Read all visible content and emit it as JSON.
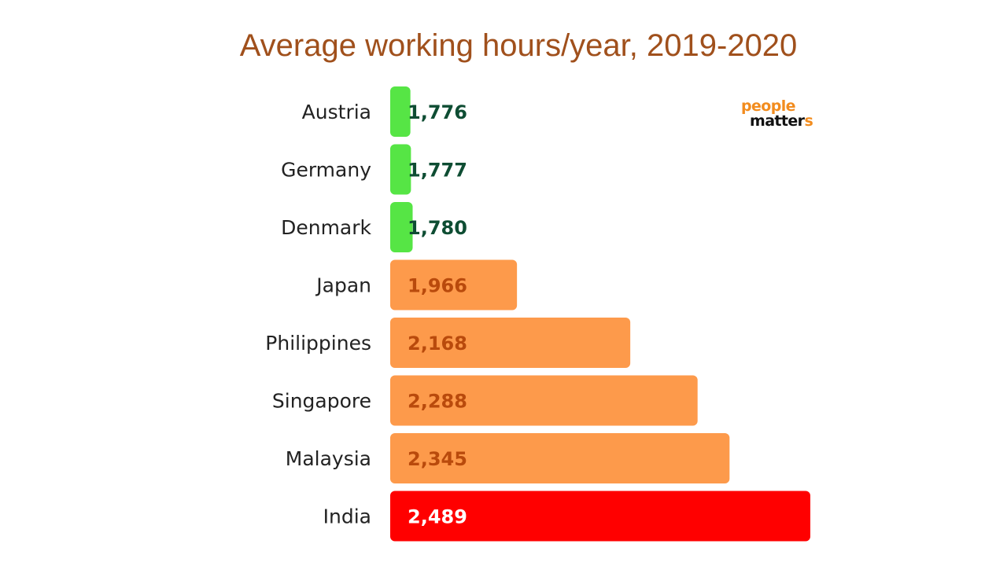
{
  "chart_data": {
    "type": "bar",
    "orientation": "horizontal",
    "title": "Average working hours/year, 2019-2020",
    "categories": [
      "Austria",
      "Germany",
      "Denmark",
      "Japan",
      "Philippines",
      "Singapore",
      "Malaysia",
      "India"
    ],
    "values": [
      1776,
      1777,
      1780,
      1966,
      2168,
      2288,
      2345,
      2489
    ],
    "value_labels": [
      "1,776",
      "1,777",
      "1,780",
      "1,966",
      "2,168",
      "2,288",
      "2,345",
      "2,489"
    ],
    "xlim": [
      1740,
      2489
    ],
    "bar_colors": [
      "#56e545",
      "#56e545",
      "#56e545",
      "#fd9a4b",
      "#fd9a4b",
      "#fd9a4b",
      "#fd9a4b",
      "#ff0000"
    ],
    "label_colors": [
      "#0e4d33",
      "#0e4d33",
      "#0e4d33",
      "#b94a0c",
      "#b94a0c",
      "#b94a0c",
      "#b94a0c",
      "#ffffff"
    ],
    "xlabel": "",
    "ylabel": "",
    "grid": false
  },
  "logo": {
    "line1": "people",
    "line2": "matter",
    "line2_accent": "s"
  }
}
